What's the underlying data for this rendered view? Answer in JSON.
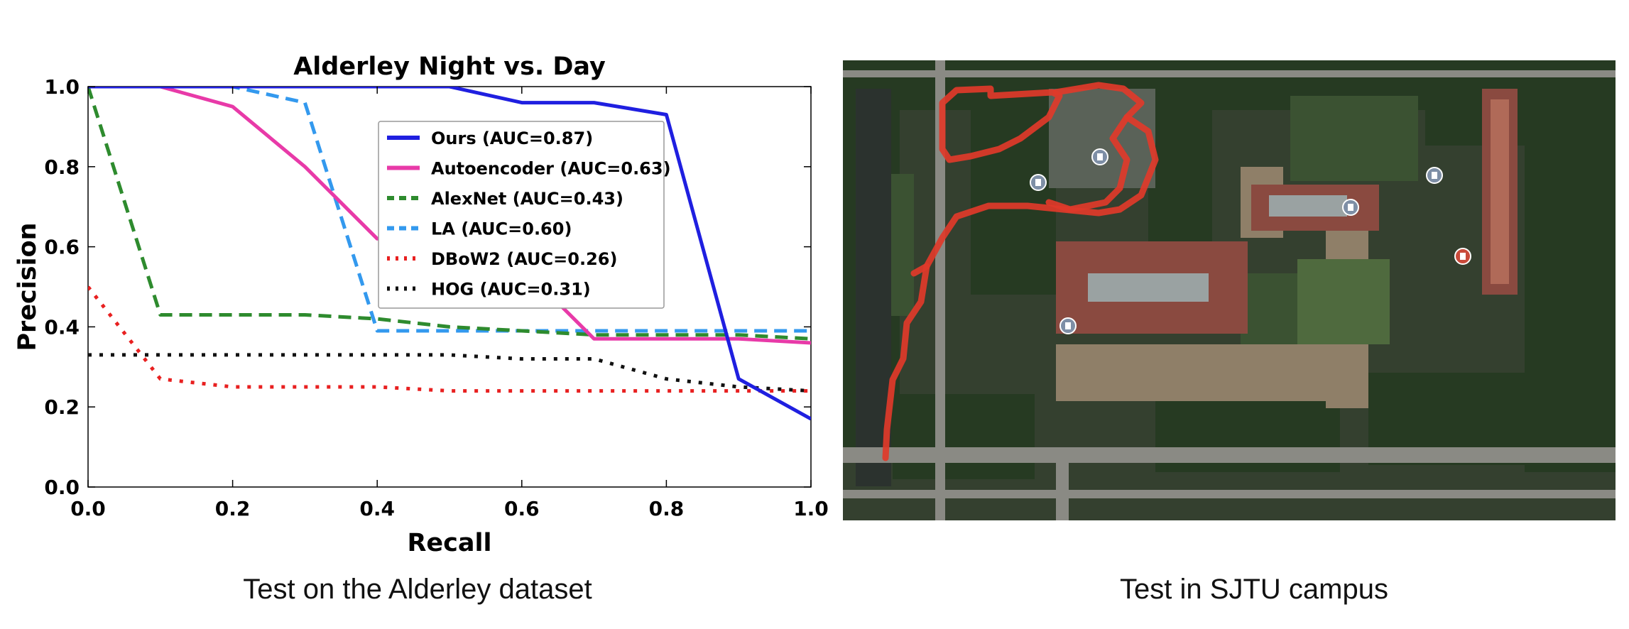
{
  "chart_data": {
    "type": "line",
    "title": "Alderley Night vs. Day",
    "xlabel": "Recall",
    "ylabel": "Precision",
    "xlim": [
      0.0,
      1.0
    ],
    "ylim": [
      0.0,
      1.0
    ],
    "xticks": [
      "0.0",
      "0.2",
      "0.4",
      "0.6",
      "0.8",
      "1.0"
    ],
    "yticks": [
      "0.0",
      "0.2",
      "0.4",
      "0.6",
      "0.8",
      "1.0"
    ],
    "grid": false,
    "legend_position": "upper-right",
    "series": [
      {
        "name": "Ours (AUC=0.87)",
        "color": "#1f1fe0",
        "style": "solid",
        "x": [
          0.0,
          0.5,
          0.6,
          0.7,
          0.8,
          0.9,
          1.0
        ],
        "y": [
          1.0,
          1.0,
          0.96,
          0.96,
          0.93,
          0.27,
          0.17
        ]
      },
      {
        "name": "Autoencoder (AUC=0.63)",
        "color": "#e83aa8",
        "style": "solid",
        "x": [
          0.0,
          0.1,
          0.2,
          0.3,
          0.4,
          0.5,
          0.6,
          0.7,
          0.8,
          0.9,
          1.0
        ],
        "y": [
          1.0,
          1.0,
          0.95,
          0.8,
          0.62,
          0.62,
          0.55,
          0.37,
          0.37,
          0.37,
          0.36
        ]
      },
      {
        "name": "AlexNet (AUC=0.43)",
        "color": "#2e8b2e",
        "style": "dashed",
        "x": [
          0.0,
          0.1,
          0.2,
          0.3,
          0.4,
          0.5,
          0.6,
          0.7,
          0.8,
          0.9,
          1.0
        ],
        "y": [
          1.0,
          0.43,
          0.43,
          0.43,
          0.42,
          0.4,
          0.39,
          0.38,
          0.38,
          0.38,
          0.37
        ]
      },
      {
        "name": "LA (AUC=0.60)",
        "color": "#3399ee",
        "style": "dashed",
        "x": [
          0.0,
          0.2,
          0.3,
          0.4,
          0.5,
          0.6,
          0.7,
          0.8,
          0.9,
          1.0
        ],
        "y": [
          1.0,
          1.0,
          0.96,
          0.39,
          0.39,
          0.39,
          0.39,
          0.39,
          0.39,
          0.39
        ]
      },
      {
        "name": "DBoW2 (AUC=0.26)",
        "color": "#e82020",
        "style": "dashdot",
        "x": [
          0.0,
          0.1,
          0.2,
          0.3,
          0.4,
          0.5,
          0.6,
          0.7,
          0.8,
          0.9,
          1.0
        ],
        "y": [
          0.5,
          0.27,
          0.25,
          0.25,
          0.25,
          0.24,
          0.24,
          0.24,
          0.24,
          0.24,
          0.24
        ]
      },
      {
        "name": "HOG (AUC=0.31)",
        "color": "#111111",
        "style": "dashdot",
        "x": [
          0.0,
          0.1,
          0.2,
          0.3,
          0.4,
          0.5,
          0.6,
          0.7,
          0.8,
          0.9,
          1.0
        ],
        "y": [
          0.33,
          0.33,
          0.33,
          0.33,
          0.33,
          0.33,
          0.32,
          0.32,
          0.27,
          0.25,
          0.24
        ]
      }
    ]
  },
  "captions": {
    "left": "Test on the Alderley dataset",
    "right": "Test in SJTU campus"
  },
  "map": {
    "type": "satellite-aerial-view",
    "trajectory_color": "#e03a2a",
    "marker_icons": [
      "parking-icon",
      "parking-icon",
      "building-icon",
      "landmark-icon",
      "building-icon",
      "alert-icon"
    ]
  }
}
